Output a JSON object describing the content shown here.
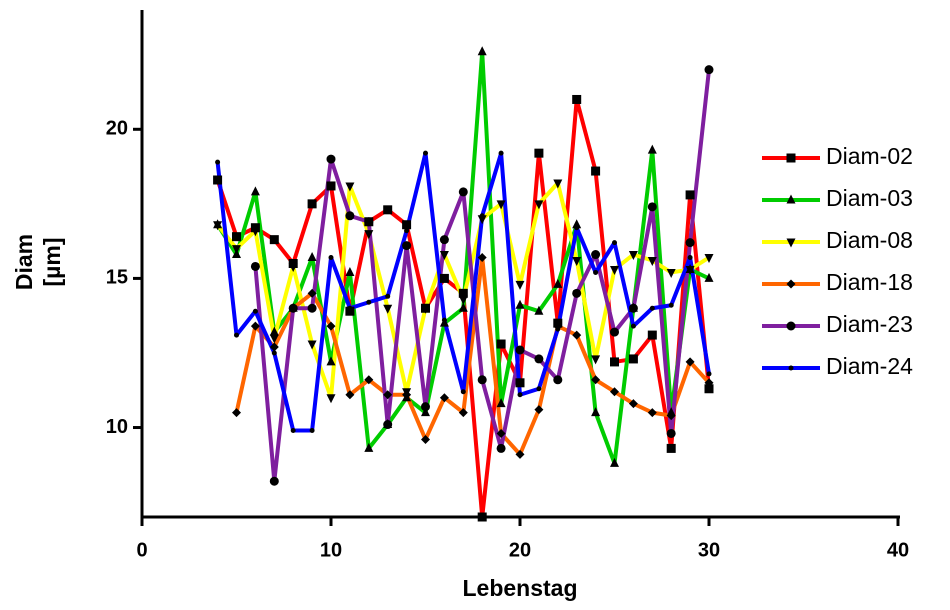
{
  "chart_data": {
    "type": "line",
    "xlabel": "Lebenstag",
    "ylabel": [
      "Diam",
      "[µm]"
    ],
    "x": [
      4,
      5,
      6,
      7,
      8,
      9,
      10,
      11,
      12,
      13,
      14,
      15,
      16,
      17,
      18,
      19,
      20,
      21,
      22,
      23,
      24,
      25,
      26,
      27,
      28,
      29,
      30
    ],
    "xlim": [
      0,
      40
    ],
    "xticks": [
      0,
      10,
      20,
      30,
      40
    ],
    "ylim": [
      7,
      24
    ],
    "yticks": [
      10,
      15,
      20
    ],
    "legend": "right",
    "series": [
      {
        "name": "Diam-02",
        "color": "#ff0000",
        "marker": "square",
        "values": [
          18.3,
          16.4,
          16.7,
          16.3,
          15.5,
          17.5,
          18.1,
          13.9,
          16.9,
          17.3,
          16.8,
          14.0,
          15.0,
          14.5,
          7.0,
          12.8,
          11.5,
          19.2,
          13.5,
          21.0,
          18.6,
          12.2,
          12.3,
          13.1,
          9.3,
          17.8,
          11.3
        ]
      },
      {
        "name": "Diam-03",
        "color": "#00cc00",
        "marker": "triangle",
        "values": [
          16.8,
          15.8,
          17.9,
          13.2,
          14.0,
          15.7,
          12.2,
          15.2,
          9.3,
          10.1,
          11.0,
          10.5,
          13.5,
          14.0,
          22.6,
          10.8,
          14.1,
          13.9,
          14.8,
          16.8,
          10.5,
          8.8,
          14.0,
          19.3,
          10.5,
          15.3,
          15.0
        ]
      },
      {
        "name": "Diam-08",
        "color": "#ffff00",
        "marker": "triangle-down",
        "values": [
          16.8,
          16.0,
          16.6,
          13.0,
          15.4,
          12.8,
          11.0,
          18.1,
          16.5,
          14.0,
          11.2,
          14.0,
          15.8,
          14.3,
          17.0,
          17.5,
          14.8,
          17.5,
          18.2,
          15.6,
          12.3,
          15.3,
          15.8,
          15.6,
          15.2,
          15.3,
          15.7
        ]
      },
      {
        "name": "Diam-18",
        "color": "#ff6600",
        "marker": "diamond",
        "values": [
          null,
          10.5,
          13.4,
          12.7,
          14.0,
          14.5,
          13.4,
          11.1,
          11.6,
          11.1,
          11.1,
          9.6,
          11.0,
          10.5,
          15.7,
          9.8,
          9.1,
          10.6,
          13.4,
          13.1,
          11.6,
          11.2,
          10.8,
          10.5,
          10.4,
          12.2,
          11.5
        ]
      },
      {
        "name": "Diam-23",
        "color": "#7f1f9f",
        "marker": "circle",
        "values": [
          null,
          null,
          15.4,
          8.2,
          14.0,
          14.0,
          19.0,
          17.1,
          16.9,
          10.1,
          16.1,
          10.7,
          16.3,
          17.9,
          11.6,
          9.3,
          12.6,
          12.3,
          11.6,
          14.5,
          15.8,
          13.2,
          14.0,
          17.4,
          9.8,
          16.2,
          22.0
        ]
      },
      {
        "name": "Diam-24",
        "color": "#0000ff",
        "marker": "dot",
        "values": [
          18.9,
          13.1,
          13.9,
          12.5,
          9.9,
          9.9,
          15.7,
          14.0,
          14.2,
          14.4,
          16.6,
          19.2,
          13.6,
          11.2,
          17.1,
          19.2,
          11.1,
          11.3,
          13.3,
          16.7,
          15.2,
          16.2,
          13.4,
          14.0,
          14.1,
          15.7,
          11.8
        ]
      }
    ]
  }
}
